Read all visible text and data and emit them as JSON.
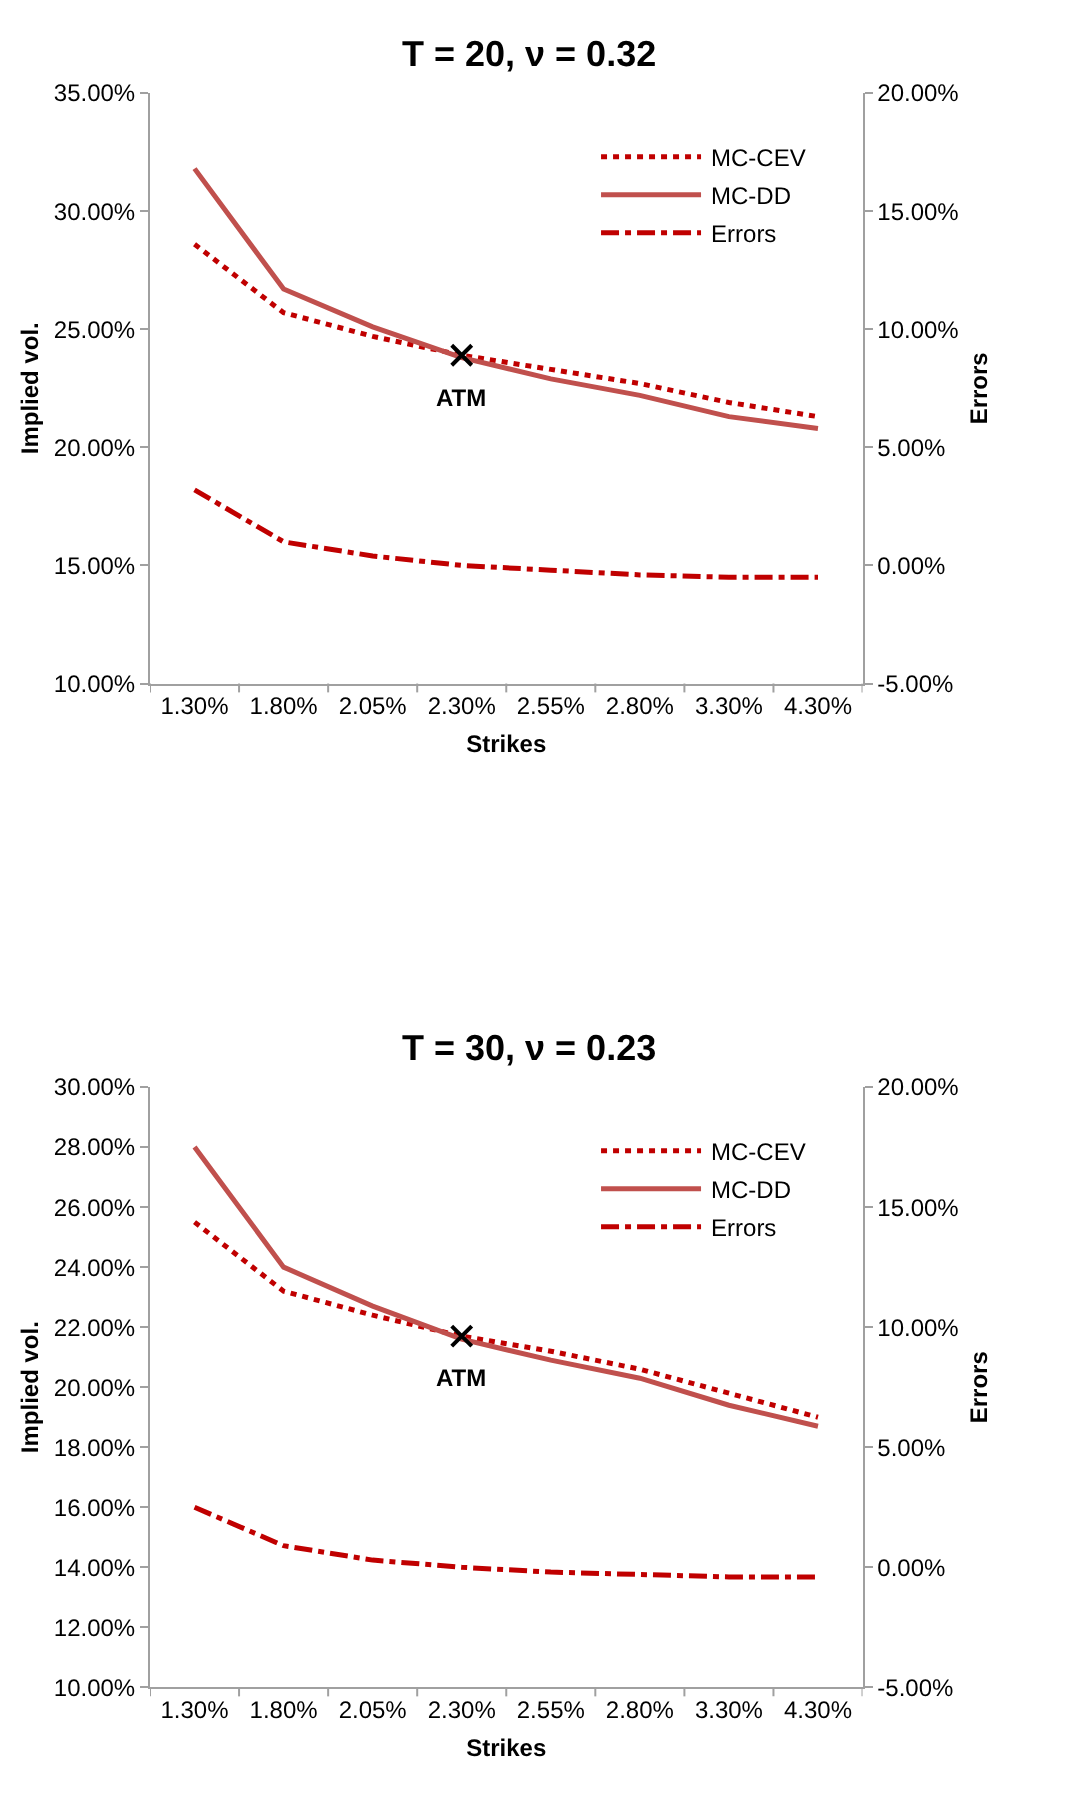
{
  "chart_data": [
    {
      "type": "line",
      "title": "T = 20, ν = 0.32",
      "xlabel": "Strikes",
      "ylabel": "Implied vol.",
      "y2label": "Errors",
      "categories": [
        "1.30%",
        "1.80%",
        "2.05%",
        "2.30%",
        "2.55%",
        "2.80%",
        "3.30%",
        "4.30%"
      ],
      "series": [
        {
          "name": "MC-CEV",
          "color": "#c00000",
          "line_style": "dotted",
          "values": [
            28.6,
            25.7,
            24.7,
            23.9,
            23.3,
            22.7,
            21.9,
            21.3
          ]
        },
        {
          "name": "MC-DD",
          "color": "#c0504d",
          "line_style": "solid",
          "values": [
            31.8,
            26.7,
            25.1,
            23.8,
            22.9,
            22.2,
            21.3,
            20.8
          ]
        },
        {
          "name": "Errors",
          "color": "#c00000",
          "line_style": "dashdot",
          "axis": "y2",
          "values": [
            3.2,
            1.0,
            0.4,
            0.0,
            -0.2,
            -0.4,
            -0.5,
            -0.5
          ]
        },
        {
          "type": "scatter",
          "color": "#000000",
          "marker": "cross",
          "values": [
            null,
            null,
            null,
            23.9,
            null,
            null,
            null,
            null
          ]
        }
      ],
      "annotations": [
        {
          "text": "ATM",
          "x": "2.30%",
          "y": 23.9
        }
      ],
      "ylim": [
        10,
        35
      ],
      "yticks": [
        {
          "value": 10,
          "label": "10.00%"
        },
        {
          "value": 15,
          "label": "15.00%"
        },
        {
          "value": 20,
          "label": "20.00%"
        },
        {
          "value": 25,
          "label": "25.00%"
        },
        {
          "value": 30,
          "label": "30.00%"
        },
        {
          "value": 35,
          "label": "35.00%"
        }
      ],
      "y2lim": [
        -5,
        20
      ],
      "y2ticks": [
        {
          "value": -5,
          "label": "-5.00%"
        },
        {
          "value": 0,
          "label": "0.00%"
        },
        {
          "value": 5,
          "label": "5.00%"
        },
        {
          "value": 10,
          "label": "10.00%"
        },
        {
          "value": 15,
          "label": "15.00%"
        },
        {
          "value": 20,
          "label": "20.00%"
        }
      ],
      "legend": "top right"
    },
    {
      "type": "line",
      "title": "T = 30, ν = 0.23",
      "xlabel": "Strikes",
      "ylabel": "Implied vol.",
      "y2label": "Errors",
      "categories": [
        "1.30%",
        "1.80%",
        "2.05%",
        "2.30%",
        "2.55%",
        "2.80%",
        "3.30%",
        "4.30%"
      ],
      "series": [
        {
          "name": "MC-CEV",
          "color": "#c00000",
          "line_style": "dotted",
          "values": [
            25.5,
            23.2,
            22.4,
            21.7,
            21.2,
            20.6,
            19.8,
            19.0
          ]
        },
        {
          "name": "MC-DD",
          "color": "#c0504d",
          "line_style": "solid",
          "values": [
            28.0,
            24.0,
            22.7,
            21.6,
            20.9,
            20.3,
            19.4,
            18.7
          ]
        },
        {
          "name": "Errors",
          "color": "#c00000",
          "line_style": "dashdot",
          "axis": "y2",
          "values": [
            2.5,
            0.9,
            0.3,
            0.0,
            -0.2,
            -0.3,
            -0.4,
            -0.4
          ]
        },
        {
          "type": "scatter",
          "color": "#000000",
          "marker": "cross",
          "values": [
            null,
            null,
            null,
            21.7,
            null,
            null,
            null,
            null
          ]
        }
      ],
      "annotations": [
        {
          "text": "ATM",
          "x": "2.30%",
          "y": 21.7
        }
      ],
      "ylim": [
        10,
        30
      ],
      "yticks": [
        {
          "value": 10,
          "label": "10.00%"
        },
        {
          "value": 12,
          "label": "12.00%"
        },
        {
          "value": 14,
          "label": "14.00%"
        },
        {
          "value": 16,
          "label": "16.00%"
        },
        {
          "value": 18,
          "label": "18.00%"
        },
        {
          "value": 20,
          "label": "20.00%"
        },
        {
          "value": 22,
          "label": "22.00%"
        },
        {
          "value": 24,
          "label": "24.00%"
        },
        {
          "value": 26,
          "label": "26.00%"
        },
        {
          "value": 28,
          "label": "28.00%"
        },
        {
          "value": 30,
          "label": "30.00%"
        }
      ],
      "y2lim": [
        -5,
        20
      ],
      "y2ticks": [
        {
          "value": -5,
          "label": "-5.00%"
        },
        {
          "value": 0,
          "label": "0.00%"
        },
        {
          "value": 5,
          "label": "5.00%"
        },
        {
          "value": 10,
          "label": "10.00%"
        },
        {
          "value": 15,
          "label": "15.00%"
        },
        {
          "value": 20,
          "label": "20.00%"
        }
      ],
      "legend": "top right"
    }
  ]
}
